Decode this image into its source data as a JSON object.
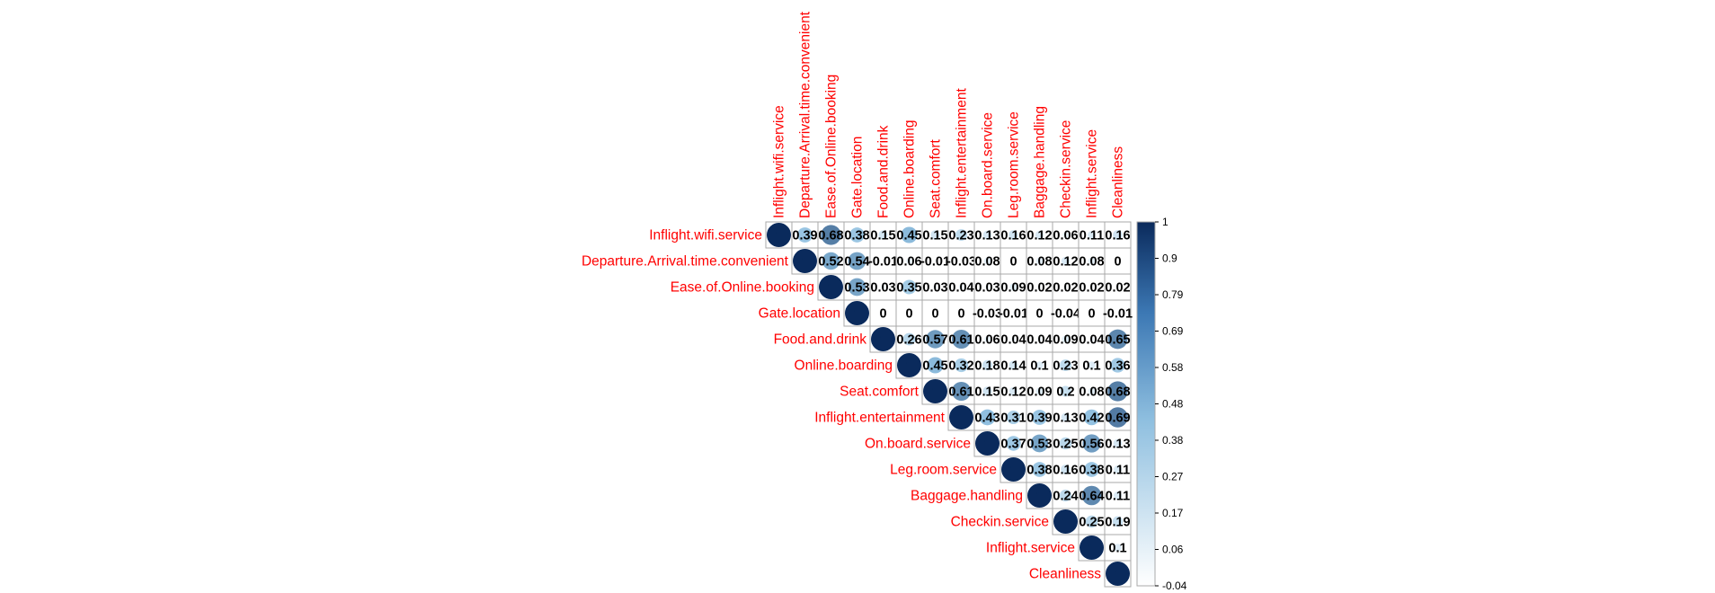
{
  "chart_data": {
    "type": "heatmap",
    "style": "upper-triangle correlation plot, circle glyphs with numeric coefficients",
    "variables": [
      "Inflight.wifi.service",
      "Departure.Arrival.time.convenient",
      "Ease.of.Online.booking",
      "Gate.location",
      "Food.and.drink",
      "Online.boarding",
      "Seat.comfort",
      "Inflight.entertainment",
      "On.board.service",
      "Leg.room.service",
      "Baggage.handling",
      "Checkin.service",
      "Inflight.service",
      "Cleanliness"
    ],
    "matrix": [
      [
        1,
        0.39,
        0.68,
        0.38,
        0.15,
        0.45,
        0.15,
        0.23,
        0.13,
        0.16,
        0.12,
        0.06,
        0.11,
        0.16
      ],
      [
        null,
        1,
        0.52,
        0.54,
        -0.01,
        0.06,
        -0.01,
        -0.03,
        0.08,
        0,
        0.08,
        0.12,
        0.08,
        0
      ],
      [
        null,
        null,
        1,
        0.53,
        0.03,
        0.35,
        0.03,
        0.04,
        0.03,
        0.09,
        0.02,
        0.02,
        0.02,
        0.02
      ],
      [
        null,
        null,
        null,
        1,
        0,
        0,
        0,
        0,
        -0.03,
        -0.01,
        0,
        -0.04,
        0,
        -0.01
      ],
      [
        null,
        null,
        null,
        null,
        1,
        0.26,
        0.57,
        0.61,
        0.06,
        0.04,
        0.04,
        0.09,
        0.04,
        0.65
      ],
      [
        null,
        null,
        null,
        null,
        null,
        1,
        0.45,
        0.32,
        0.18,
        0.14,
        0.1,
        0.23,
        0.1,
        0.36
      ],
      [
        null,
        null,
        null,
        null,
        null,
        null,
        1,
        0.61,
        0.15,
        0.12,
        0.09,
        0.2,
        0.08,
        0.68
      ],
      [
        null,
        null,
        null,
        null,
        null,
        null,
        null,
        1,
        0.43,
        0.31,
        0.39,
        0.13,
        0.42,
        0.69
      ],
      [
        null,
        null,
        null,
        null,
        null,
        null,
        null,
        null,
        1,
        0.37,
        0.53,
        0.25,
        0.56,
        0.13
      ],
      [
        null,
        null,
        null,
        null,
        null,
        null,
        null,
        null,
        null,
        1,
        0.38,
        0.16,
        0.38,
        0.11
      ],
      [
        null,
        null,
        null,
        null,
        null,
        null,
        null,
        null,
        null,
        null,
        1,
        0.24,
        0.64,
        0.11
      ],
      [
        null,
        null,
        null,
        null,
        null,
        null,
        null,
        null,
        null,
        null,
        null,
        1,
        0.25,
        0.19
      ],
      [
        null,
        null,
        null,
        null,
        null,
        null,
        null,
        null,
        null,
        null,
        null,
        null,
        1,
        0.1
      ],
      [
        null,
        null,
        null,
        null,
        null,
        null,
        null,
        null,
        null,
        null,
        null,
        null,
        null,
        1
      ]
    ],
    "color_range": [
      -0.04,
      1
    ],
    "colors": {
      "low": "#ffffff",
      "mid": "#90c0e0",
      "high": "#0a2a5c",
      "label": "#ff0000",
      "cell_border": "#a9a9a9",
      "value_text": "#000000",
      "diag_value_text": "#0a2a5c"
    },
    "legend": {
      "position": "right",
      "ticks": [
        "1",
        "0.9",
        "0.79",
        "0.69",
        "0.58",
        "0.48",
        "0.38",
        "0.27",
        "0.17",
        "0.06",
        "-0.04"
      ]
    },
    "title": "",
    "xlabel": "",
    "ylabel": ""
  }
}
